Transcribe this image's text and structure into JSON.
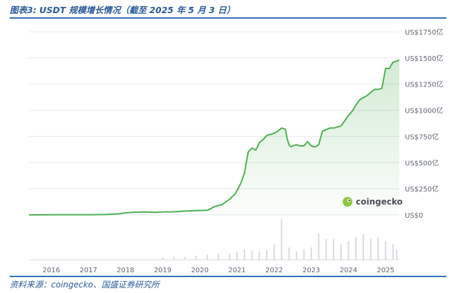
{
  "figure": {
    "title": "图表3:  USDT 规模增长情况（截至 2025 年 5 月 3 日）",
    "source": "资料来源：coingecko、国盛证券研究所"
  },
  "watermark": {
    "text": "coingecko",
    "icon": "gecko-logo-icon",
    "icon_color": "#8dc63f"
  },
  "chart_data": {
    "type": "area",
    "title": "",
    "xlabel": "",
    "ylabel": "",
    "line_color": "#4caf50",
    "fill_color": "#4caf50",
    "ylim": [
      0,
      1750
    ],
    "xlim": [
      2015.4,
      2025.37
    ],
    "y_ticks": [
      0,
      250,
      500,
      750,
      1000,
      1250,
      1500,
      1750
    ],
    "y_tick_labels": [
      "US$0",
      "US$250亿",
      "US$500亿",
      "US$750亿",
      "US$1000亿",
      "US$1250亿",
      "US$1500亿",
      "US$1750亿"
    ],
    "x_ticks": [
      2016,
      2017,
      2018,
      2019,
      2020,
      2021,
      2022,
      2023,
      2024,
      2025
    ],
    "x_tick_labels": [
      "2016",
      "2017",
      "2018",
      "2019",
      "2020",
      "2021",
      "2022",
      "2023",
      "2024",
      "2025"
    ],
    "grid": true,
    "series": [
      {
        "x": [
          2015.4,
          2016.0,
          2017.0,
          2017.5,
          2017.8,
          2018.0,
          2018.2,
          2018.5,
          2018.8,
          2019.0,
          2019.3,
          2019.5,
          2019.8,
          2020.0,
          2020.2,
          2020.4,
          2020.6,
          2020.8,
          2020.95,
          2021.1,
          2021.2,
          2021.3,
          2021.4,
          2021.5,
          2021.55,
          2021.6,
          2021.7,
          2021.8,
          2021.9,
          2022.0,
          2022.1,
          2022.2,
          2022.3,
          2022.35,
          2022.4,
          2022.45,
          2022.5,
          2022.6,
          2022.7,
          2022.8,
          2022.9,
          2023.0,
          2023.1,
          2023.2,
          2023.3,
          2023.5,
          2023.6,
          2023.8,
          2024.0,
          2024.1,
          2024.2,
          2024.3,
          2024.4,
          2024.5,
          2024.6,
          2024.7,
          2024.8,
          2024.9,
          2025.0,
          2025.1,
          2025.2,
          2025.37
        ],
        "y": [
          0,
          1,
          2,
          4,
          10,
          20,
          25,
          28,
          25,
          28,
          30,
          35,
          40,
          42,
          44,
          80,
          100,
          150,
          200,
          300,
          400,
          600,
          640,
          620,
          650,
          690,
          720,
          760,
          770,
          780,
          800,
          830,
          820,
          730,
          670,
          650,
          660,
          670,
          660,
          660,
          700,
          660,
          650,
          670,
          800,
          830,
          830,
          850,
          950,
          990,
          1050,
          1100,
          1120,
          1140,
          1170,
          1200,
          1200,
          1210,
          1400,
          1400,
          1460,
          1480
        ]
      }
    ],
    "volume": {
      "x": [
        2019.0,
        2019.3,
        2019.6,
        2019.9,
        2020.2,
        2020.5,
        2020.8,
        2021.0,
        2021.2,
        2021.4,
        2021.6,
        2021.8,
        2022.0,
        2022.2,
        2022.4,
        2022.6,
        2022.8,
        2023.0,
        2023.2,
        2023.4,
        2023.6,
        2023.8,
        2024.0,
        2024.2,
        2024.4,
        2024.6,
        2024.8,
        2025.0,
        2025.2,
        2025.3
      ],
      "y": [
        2,
        3,
        3,
        4,
        5,
        6,
        6,
        8,
        10,
        9,
        8,
        9,
        15,
        40,
        12,
        8,
        10,
        12,
        25,
        20,
        20,
        15,
        18,
        22,
        25,
        20,
        22,
        18,
        15,
        10
      ]
    }
  }
}
